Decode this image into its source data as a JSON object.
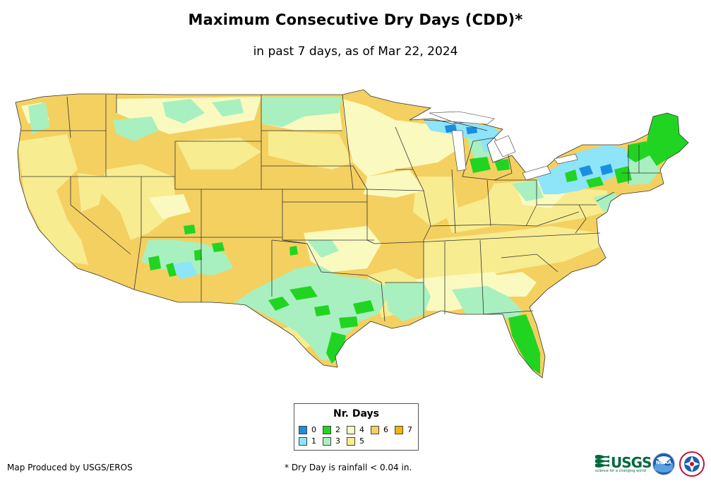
{
  "title": "Maximum Consecutive Dry Days (CDD)*",
  "subtitle": "in past 7 days, as of Mar 22, 2024",
  "legend": {
    "title": "Nr. Days",
    "items": [
      {
        "label": "0",
        "color": "#1a8fe0"
      },
      {
        "label": "1",
        "color": "#8ee4f8"
      },
      {
        "label": "2",
        "color": "#22d422"
      },
      {
        "label": "3",
        "color": "#a8f0c0"
      },
      {
        "label": "4",
        "color": "#fafac0"
      },
      {
        "label": "5",
        "color": "#f8ec90"
      },
      {
        "label": "6",
        "color": "#f4d060"
      },
      {
        "label": "7",
        "color": "#f0b800"
      }
    ]
  },
  "footer": {
    "producer": "Map Produced by USGS/EROS",
    "footnote": "* Dry Day is rainfall < 0.04 in."
  },
  "logos": {
    "usgs": "USGS",
    "usgs_tagline": "science for a changing world",
    "noaa": "NOAA"
  },
  "map": {
    "region": "Contiguous United States",
    "base_color": "#f4d060",
    "border_color": "#333333"
  }
}
